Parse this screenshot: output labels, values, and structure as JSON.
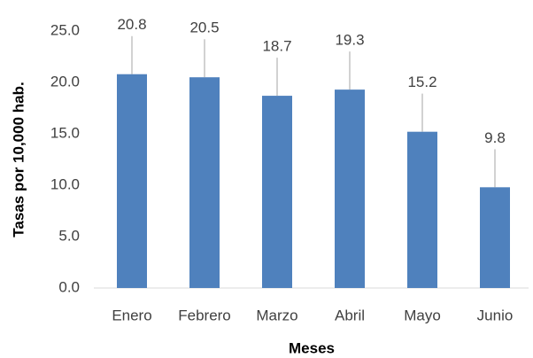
{
  "chart_data": {
    "type": "bar",
    "xlabel": "Meses",
    "ylabel": "Tasas por 10,000 hab.",
    "categories": [
      "Enero",
      "Febrero",
      "Marzo",
      "Abril",
      "Mayo",
      "Junio"
    ],
    "values": [
      20.8,
      20.5,
      18.7,
      19.3,
      15.2,
      9.8
    ],
    "color": "#4f81bd",
    "ylim": [
      0,
      25
    ],
    "yticks": [
      {
        "value": 0,
        "label": "0.0"
      },
      {
        "value": 5,
        "label": "5.0"
      },
      {
        "value": 10,
        "label": "10.0"
      },
      {
        "value": 15,
        "label": "15.0"
      },
      {
        "value": 20,
        "label": "20.0"
      },
      {
        "value": 25,
        "label": "25.0"
      }
    ],
    "grid": false
  }
}
